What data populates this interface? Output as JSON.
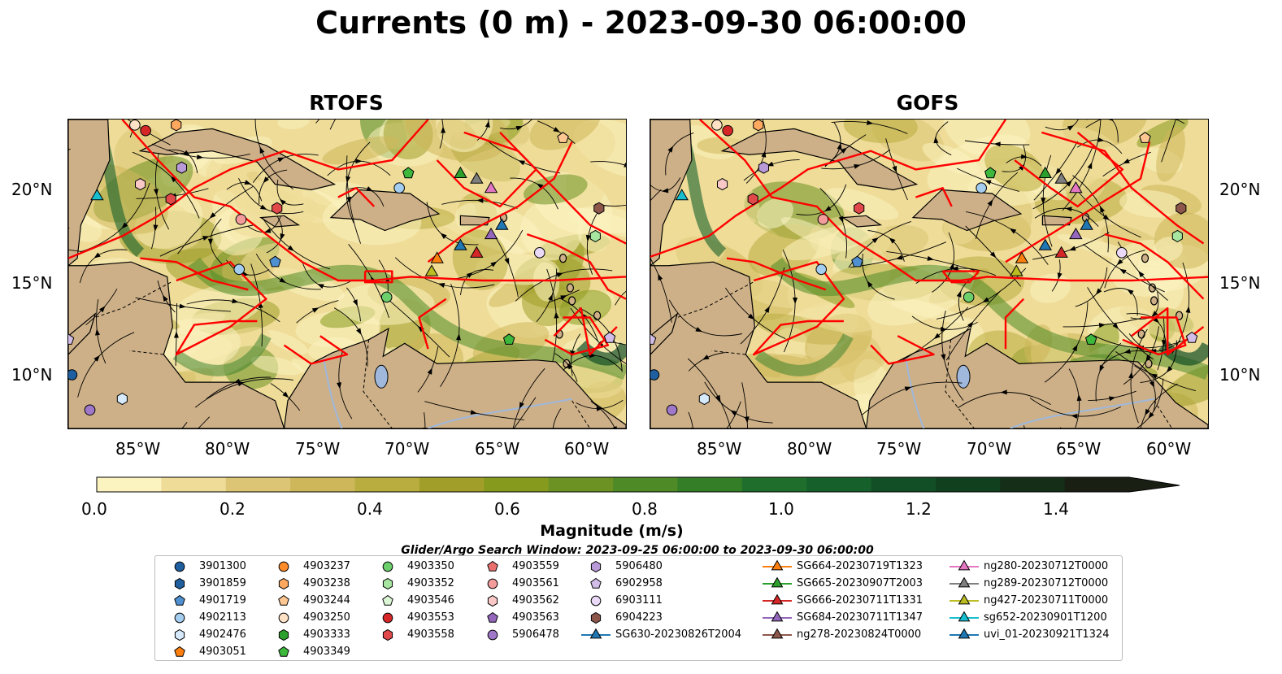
{
  "title": "Currents (0 m) - 2023-09-30 06:00:00",
  "panels": [
    {
      "title": "RTOFS"
    },
    {
      "title": "GOFS"
    }
  ],
  "lon_ticks": [
    "85°W",
    "80°W",
    "75°W",
    "70°W",
    "65°W",
    "60°W"
  ],
  "lat_ticks": [
    "20°N",
    "15°N",
    "10°N"
  ],
  "colorbar": {
    "label": "Magnitude (m/s)",
    "ticks": [
      "0.0",
      "0.2",
      "0.4",
      "0.6",
      "0.8",
      "1.0",
      "1.2",
      "1.4"
    ],
    "colors": [
      "#fbf3c0",
      "#eedc98",
      "#dcc675",
      "#cdb75a",
      "#b9ad3f",
      "#a19f2a",
      "#869a1d",
      "#6b9223",
      "#4e8a26",
      "#347e27",
      "#1f6e2b",
      "#15602b",
      "#124f26",
      "#11401f",
      "#142e18",
      "#1a1f14"
    ]
  },
  "colors": {
    "land": "#cdb087",
    "tracks": "#ff0000",
    "river": "#9fb8dc"
  },
  "search_window": "Glider/Argo Search Window: 2023-09-25 06:00:00 to 2023-09-30 06:00:00",
  "legend": [
    {
      "label": "3901300",
      "marker": "circle",
      "color": "#1f5fa0"
    },
    {
      "label": "3901859",
      "marker": "hexagon",
      "color": "#1f5fa0"
    },
    {
      "label": "4901719",
      "marker": "pentagon",
      "color": "#4f90d0"
    },
    {
      "label": "4902113",
      "marker": "circle",
      "color": "#a4cdf0"
    },
    {
      "label": "4902476",
      "marker": "hexagon",
      "color": "#d6eafc"
    },
    {
      "label": "4903051",
      "marker": "pentagon",
      "color": "#ff7f0e"
    },
    {
      "label": "4903237",
      "marker": "circle",
      "color": "#ff8c2a"
    },
    {
      "label": "4903238",
      "marker": "hexagon",
      "color": "#ffa860"
    },
    {
      "label": "4903244",
      "marker": "pentagon",
      "color": "#ffc792"
    },
    {
      "label": "4903250",
      "marker": "circle",
      "color": "#ffe2c6"
    },
    {
      "label": "4903333",
      "marker": "hexagon",
      "color": "#2ca02c"
    },
    {
      "label": "4903349",
      "marker": "pentagon",
      "color": "#3db83d"
    },
    {
      "label": "4903350",
      "marker": "circle",
      "color": "#6ccf6c"
    },
    {
      "label": "4903352",
      "marker": "hexagon",
      "color": "#a6e6a0"
    },
    {
      "label": "4903546",
      "marker": "pentagon",
      "color": "#dcf7d6"
    },
    {
      "label": "4903553",
      "marker": "circle",
      "color": "#d62728"
    },
    {
      "label": "4903558",
      "marker": "hexagon",
      "color": "#e0484a"
    },
    {
      "label": "4903559",
      "marker": "pentagon",
      "color": "#ea7070"
    },
    {
      "label": "4903561",
      "marker": "circle",
      "color": "#f39c9c"
    },
    {
      "label": "4903562",
      "marker": "hexagon",
      "color": "#fbc8c8"
    },
    {
      "label": "4903563",
      "marker": "pentagon",
      "color": "#9467bd"
    },
    {
      "label": "5906478",
      "marker": "circle",
      "color": "#9f78c9"
    },
    {
      "label": "5906480",
      "marker": "hexagon",
      "color": "#b99ad8"
    },
    {
      "label": "6902958",
      "marker": "pentagon",
      "color": "#d2bce8"
    },
    {
      "label": "6903111",
      "marker": "circle",
      "color": "#ead9f7"
    },
    {
      "label": "6904223",
      "marker": "hexagon",
      "color": "#8c564b"
    },
    {
      "label": "SG630-20230826T2004",
      "marker": "triangle",
      "color": "#1f77b4"
    },
    {
      "label": "SG664-20230719T1323",
      "marker": "triangle",
      "color": "#ff7f0e"
    },
    {
      "label": "SG665-20230907T2003",
      "marker": "triangle",
      "color": "#2ca02c"
    },
    {
      "label": "SG666-20230711T1331",
      "marker": "triangle",
      "color": "#d62728"
    },
    {
      "label": "SG684-20230711T1347",
      "marker": "triangle",
      "color": "#9467bd"
    },
    {
      "label": "ng278-20230824T0000",
      "marker": "triangle",
      "color": "#8c564b"
    },
    {
      "label": "ng280-20230712T0000",
      "marker": "triangle",
      "color": "#e377c2"
    },
    {
      "label": "ng289-20230712T0000",
      "marker": "triangle",
      "color": "#7f7f7f"
    },
    {
      "label": "ng427-20230711T0000",
      "marker": "triangle",
      "color": "#bcbd22"
    },
    {
      "label": "sg652-20230901T1200",
      "marker": "triangle",
      "color": "#17becf"
    },
    {
      "label": "uvi_01-20230921T1324",
      "marker": "triangle",
      "color": "#1f77b4"
    }
  ],
  "map_markers": [
    {
      "id": "4903250",
      "lon": -85.3,
      "lat": 23.4,
      "shape": "circle",
      "color": "#ffe2c6"
    },
    {
      "id": "4903553",
      "lon": -84.7,
      "lat": 23.1,
      "shape": "circle",
      "color": "#d62728"
    },
    {
      "id": "4903238",
      "lon": -83.0,
      "lat": 23.4,
      "shape": "hexagon",
      "color": "#ffa860"
    },
    {
      "id": "4903244",
      "lon": -61.5,
      "lat": 22.7,
      "shape": "pentagon",
      "color": "#ffc792"
    },
    {
      "id": "5906480",
      "lon": -82.7,
      "lat": 21.1,
      "shape": "hexagon",
      "color": "#b99ad8"
    },
    {
      "id": "4903562",
      "lon": -85.0,
      "lat": 20.2,
      "shape": "hexagon",
      "color": "#fbc8c8"
    },
    {
      "id": "sg652",
      "lon": -87.4,
      "lat": 19.6,
      "shape": "triangle",
      "color": "#17becf"
    },
    {
      "id": "4903558",
      "lon": -83.3,
      "lat": 19.4,
      "shape": "hexagon",
      "color": "#e0484a"
    },
    {
      "id": "4903561",
      "lon": -79.4,
      "lat": 18.3,
      "shape": "circle",
      "color": "#f39c9c"
    },
    {
      "id": "4903558b",
      "lon": -77.4,
      "lat": 18.9,
      "shape": "hexagon",
      "color": "#e0484a"
    },
    {
      "id": "4903349",
      "lon": -70.1,
      "lat": 20.8,
      "shape": "pentagon",
      "color": "#3db83d"
    },
    {
      "id": "4902113",
      "lon": -70.6,
      "lat": 20.0,
      "shape": "circle",
      "color": "#a4cdf0"
    },
    {
      "id": "SG665",
      "lon": -67.2,
      "lat": 20.8,
      "shape": "triangle",
      "color": "#2ca02c"
    },
    {
      "id": "ng289",
      "lon": -66.3,
      "lat": 20.5,
      "shape": "triangle",
      "color": "#7f7f7f"
    },
    {
      "id": "ng280",
      "lon": -65.5,
      "lat": 20.0,
      "shape": "triangle",
      "color": "#e377c2"
    },
    {
      "id": "6904223",
      "lon": -59.5,
      "lat": 18.9,
      "shape": "hexagon",
      "color": "#8c564b"
    },
    {
      "id": "4903352",
      "lon": -59.7,
      "lat": 17.4,
      "shape": "hexagon",
      "color": "#a6e6a0"
    },
    {
      "id": "uvi_01",
      "lon": -64.9,
      "lat": 18.0,
      "shape": "triangle",
      "color": "#1f77b4"
    },
    {
      "id": "SG684",
      "lon": -65.5,
      "lat": 17.5,
      "shape": "triangle",
      "color": "#9467bd"
    },
    {
      "id": "SG630",
      "lon": -67.2,
      "lat": 16.9,
      "shape": "triangle",
      "color": "#1f77b4"
    },
    {
      "id": "SG666",
      "lon": -66.3,
      "lat": 16.5,
      "shape": "triangle",
      "color": "#d62728"
    },
    {
      "id": "6903111",
      "lon": -62.8,
      "lat": 16.5,
      "shape": "circle",
      "color": "#ead9f7"
    },
    {
      "id": "SG664",
      "lon": -68.5,
      "lat": 16.2,
      "shape": "triangle",
      "color": "#ff7f0e"
    },
    {
      "id": "ng427",
      "lon": -68.8,
      "lat": 15.5,
      "shape": "triangle",
      "color": "#bcbd22"
    },
    {
      "id": "4901719",
      "lon": -77.5,
      "lat": 16.0,
      "shape": "pentagon",
      "color": "#4f90d0"
    },
    {
      "id": "4902113b",
      "lon": -79.5,
      "lat": 15.6,
      "shape": "circle",
      "color": "#a4cdf0"
    },
    {
      "id": "4903350",
      "lon": -71.3,
      "lat": 14.1,
      "shape": "circle",
      "color": "#6ccf6c"
    },
    {
      "id": "4903349b",
      "lon": -64.5,
      "lat": 11.8,
      "shape": "pentagon",
      "color": "#3db83d"
    },
    {
      "id": "6902958",
      "lon": -58.9,
      "lat": 11.9,
      "shape": "pentagon",
      "color": "#d2bce8"
    },
    {
      "id": "6902958b",
      "lon": -89.0,
      "lat": 11.8,
      "shape": "pentagon",
      "color": "#d2bce8"
    },
    {
      "id": "3901300",
      "lon": -88.8,
      "lat": 9.9,
      "shape": "circle",
      "color": "#1f5fa0"
    },
    {
      "id": "4902476",
      "lon": -86.0,
      "lat": 8.6,
      "shape": "hexagon",
      "color": "#d6eafc"
    },
    {
      "id": "5906478",
      "lon": -87.8,
      "lat": 8.0,
      "shape": "circle",
      "color": "#9f78c9"
    }
  ]
}
